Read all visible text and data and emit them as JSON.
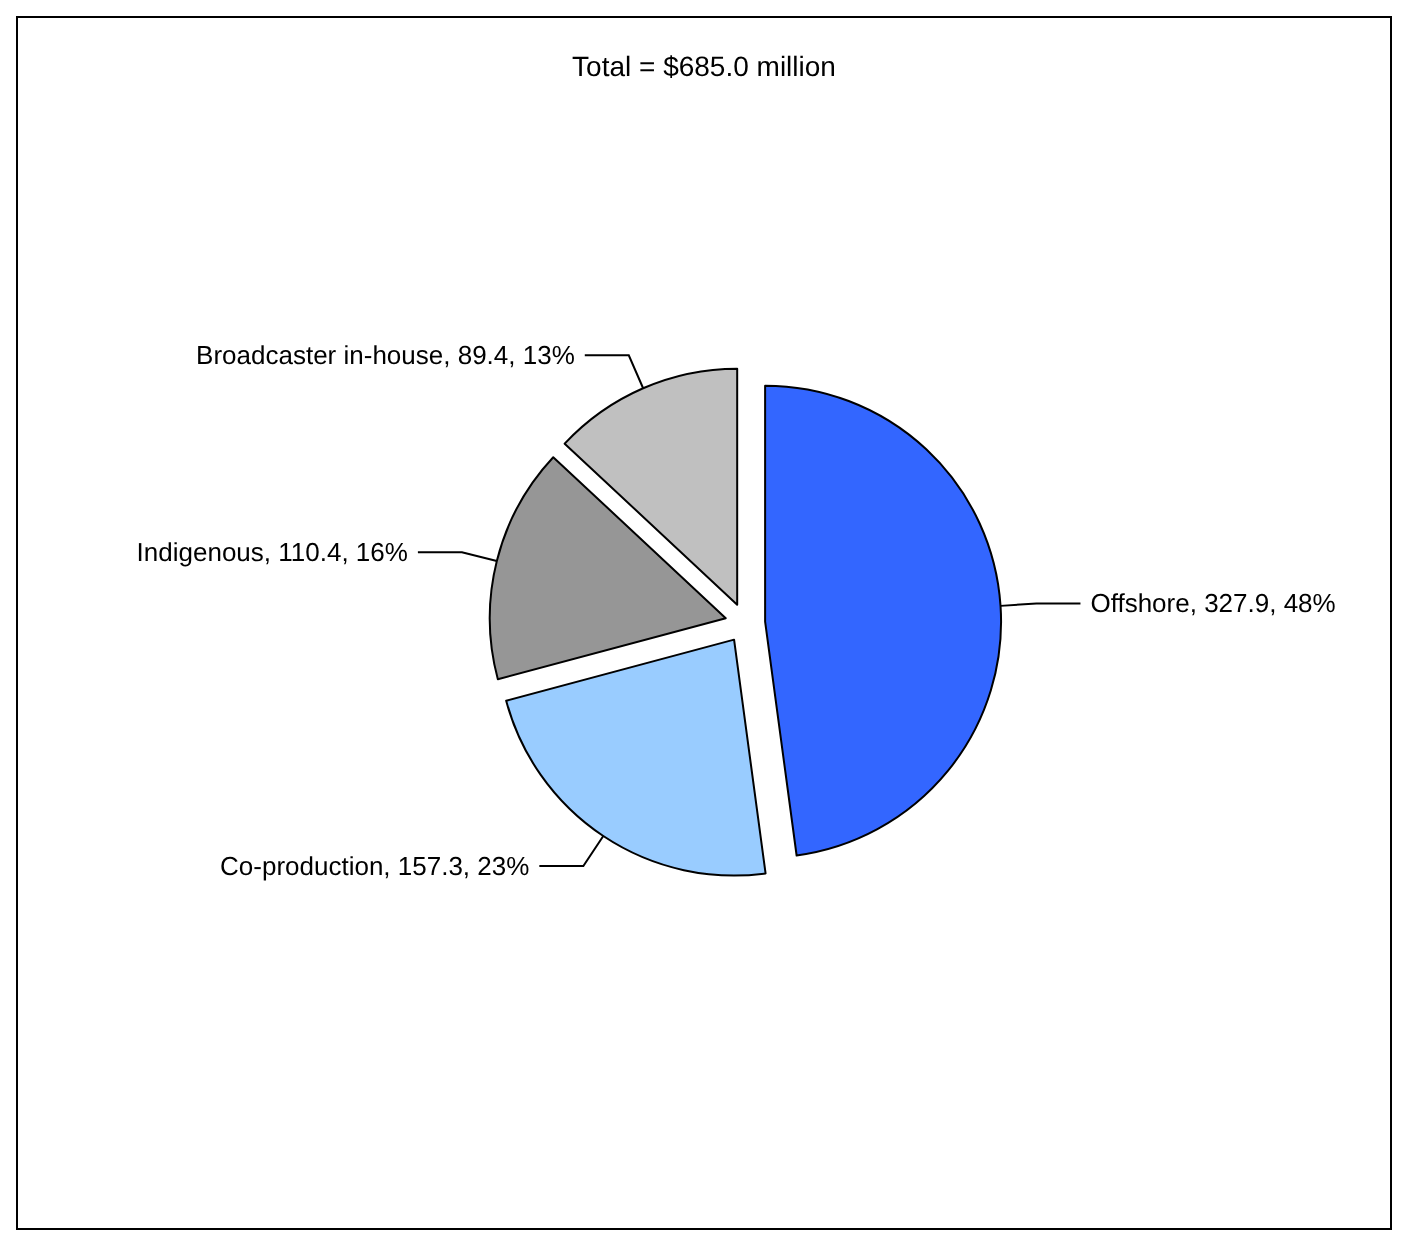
{
  "chart_data": {
    "type": "pie",
    "title": "Total = $685.0 million",
    "categories": [
      "Offshore",
      "Co-production",
      "Indigenous",
      "Broadcaster in-house"
    ],
    "values": [
      327.9,
      157.3,
      110.4,
      89.4
    ],
    "value_labels": [
      "327.9, 48%",
      "157.3, 23%",
      "110.4, 16%",
      "89.4, 13%"
    ],
    "colors": [
      "#3366ff",
      "#99ccff",
      "#969696",
      "#c0c0c0"
    ]
  }
}
